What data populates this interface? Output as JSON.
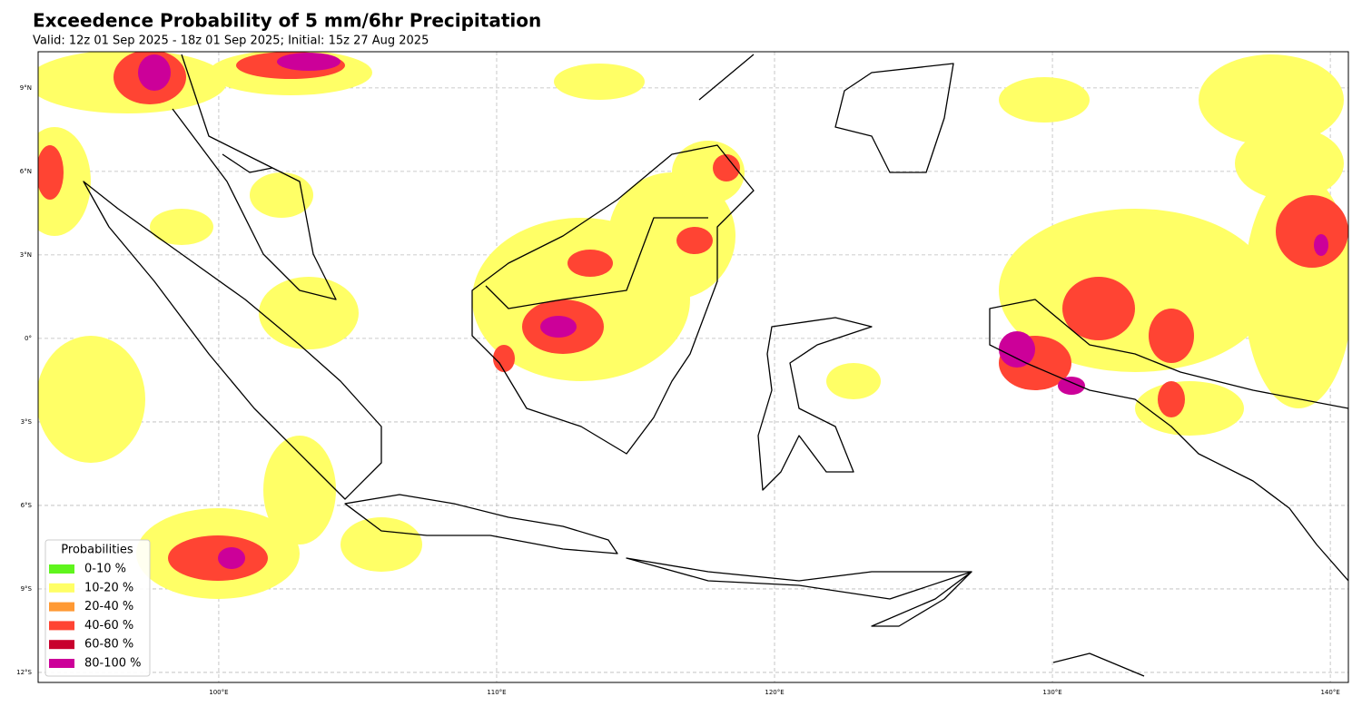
{
  "map": {
    "title": "Exceedence Probability of 5 mm/6hr Precipitation",
    "subtitle": "Valid: 12z 01 Sep 2025 - 18z 01 Sep 2025; Initial: 15z 27 Aug 2025",
    "xlim": [
      93.5,
      140.65
    ],
    "ylim": [
      -12.36,
      10.3
    ],
    "xticks": [
      {
        "value": 100,
        "label": "100°E"
      },
      {
        "value": 110,
        "label": "110°E"
      },
      {
        "value": 120,
        "label": "120°E"
      },
      {
        "value": 130,
        "label": "130°E"
      },
      {
        "value": 140,
        "label": "140°E"
      }
    ],
    "yticks": [
      {
        "value": 9,
        "label": "9°N"
      },
      {
        "value": 6,
        "label": "6°N"
      },
      {
        "value": 3,
        "label": "3°N"
      },
      {
        "value": 0,
        "label": "0°"
      },
      {
        "value": -3,
        "label": "3°S"
      },
      {
        "value": -6,
        "label": "6°S"
      },
      {
        "value": -9,
        "label": "9°S"
      },
      {
        "value": -12,
        "label": "12°S"
      }
    ],
    "grid": true,
    "legend": {
      "title": "Probabilities",
      "entries": [
        {
          "label": "0-10 %",
          "color": "#5ff51d"
        },
        {
          "label": "10-20 %",
          "color": "#ffff66"
        },
        {
          "label": "20-40 %",
          "color": "#ff9933"
        },
        {
          "label": "40-60 %",
          "color": "#ff4433"
        },
        {
          "label": "60-80 %",
          "color": "#c8002d"
        },
        {
          "label": "80-100 %",
          "color": "#cc0099"
        }
      ]
    }
  }
}
